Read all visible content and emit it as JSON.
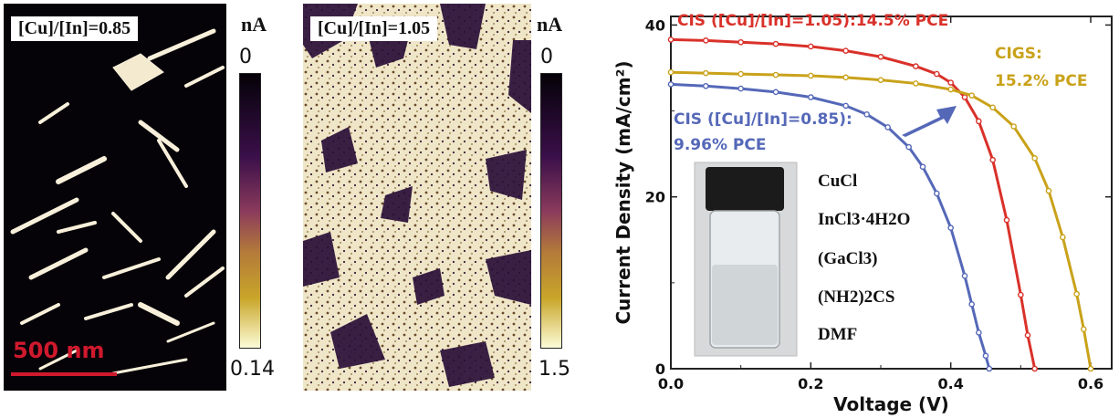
{
  "panels": {
    "afm_left": {
      "label": "[Cu]/[In]=0.85",
      "unit": "nA",
      "cb_top": "0",
      "cb_bottom": "0.14",
      "scale_bar": "500 nm"
    },
    "afm_right": {
      "label": "[Cu]/[In]=1.05",
      "unit": "nA",
      "cb_top": "0",
      "cb_bottom": "1.5"
    }
  },
  "colors": {
    "cis_105": "#d9312a",
    "cigs": "#c9a21a",
    "cis_085": "#5568b8",
    "scale_bar": "#d0192d"
  },
  "chart_data": {
    "type": "line",
    "xlabel": "Voltage (V)",
    "ylabel": "Current Density (mA/cm²)",
    "xlim": [
      0,
      0.63
    ],
    "ylim": [
      0,
      41
    ],
    "xticks": [
      "0.0",
      "0.2",
      "0.4",
      "0.6"
    ],
    "yticks": [
      "0",
      "20",
      "40"
    ],
    "series": [
      {
        "name": "CIS ([Cu]/[In]=1.05):14.5% PCE",
        "color": "#d9312a",
        "x": [
          0.0,
          0.05,
          0.1,
          0.15,
          0.2,
          0.25,
          0.3,
          0.35,
          0.38,
          0.4,
          0.42,
          0.44,
          0.46,
          0.48,
          0.5,
          0.51,
          0.52
        ],
        "y": [
          38.3,
          38.2,
          38.0,
          37.8,
          37.5,
          37.0,
          36.3,
          35.2,
          34.3,
          33.3,
          31.6,
          28.8,
          24.3,
          17.3,
          8.6,
          3.9,
          0
        ]
      },
      {
        "name": "CIGS: 15.2% PCE",
        "color": "#c9a21a",
        "x": [
          0.0,
          0.05,
          0.1,
          0.15,
          0.2,
          0.25,
          0.3,
          0.35,
          0.4,
          0.43,
          0.46,
          0.49,
          0.52,
          0.54,
          0.56,
          0.58,
          0.59,
          0.6
        ],
        "y": [
          34.5,
          34.4,
          34.3,
          34.2,
          34.1,
          33.9,
          33.6,
          33.2,
          32.5,
          31.8,
          30.4,
          28.2,
          24.5,
          20.7,
          15.3,
          8.7,
          4.6,
          0
        ]
      },
      {
        "name": "CIS ([Cu]/[In]=0.85): 9.96% PCE",
        "color": "#5568b8",
        "x": [
          0.0,
          0.05,
          0.1,
          0.15,
          0.2,
          0.25,
          0.28,
          0.31,
          0.34,
          0.36,
          0.38,
          0.4,
          0.42,
          0.43,
          0.44,
          0.45,
          0.455
        ],
        "y": [
          33.1,
          32.9,
          32.6,
          32.2,
          31.6,
          30.6,
          29.6,
          28.1,
          25.8,
          23.5,
          20.4,
          16.4,
          10.8,
          7.5,
          4.2,
          1.5,
          0
        ]
      }
    ],
    "annotations": {
      "cis_105_line": "CIS ([Cu]/[In]=1.05):14.5% PCE",
      "cigs_line1": "CIGS:",
      "cigs_line2": "15.2% PCE",
      "cis_085_line1": "CIS ([Cu]/[In]=0.85):",
      "cis_085_line2": "9.96% PCE"
    },
    "inset_labels": [
      "CuCl",
      "InCl3·4H2O",
      "(GaCl3)",
      "(NH2)2CS",
      "DMF"
    ]
  }
}
